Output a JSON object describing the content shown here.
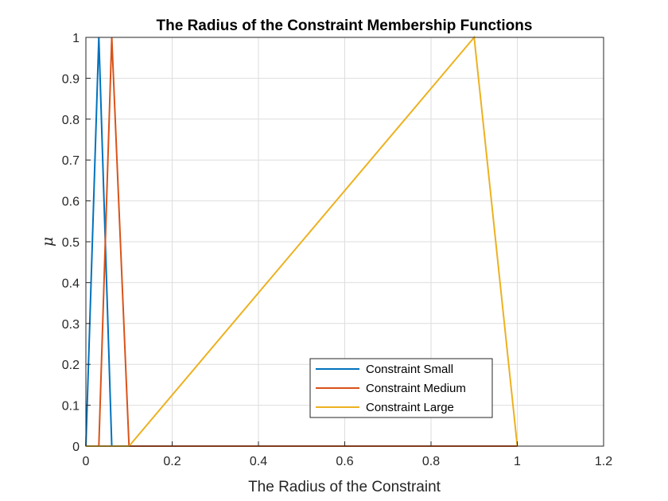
{
  "chart_data": {
    "type": "line",
    "title": "The Radius of the Constraint Membership Functions",
    "xlabel": "The Radius of the Constraint",
    "ylabel": "μ",
    "xlim": [
      0,
      1.2
    ],
    "ylim": [
      0,
      1
    ],
    "xticks": [
      "0",
      "0.2",
      "0.4",
      "0.6",
      "0.8",
      "1",
      "1.2"
    ],
    "yticks": [
      "0",
      "0.1",
      "0.2",
      "0.3",
      "0.4",
      "0.5",
      "0.6",
      "0.7",
      "0.8",
      "0.9",
      "1"
    ],
    "grid": true,
    "legend_position": "bottom-right",
    "series": [
      {
        "name": "Constraint Small",
        "color": "#0072BD",
        "x": [
          0,
          0.03,
          0.06,
          0.1,
          1.0
        ],
        "y": [
          0,
          1,
          0,
          0,
          0
        ]
      },
      {
        "name": "Constraint Medium",
        "color": "#D95319",
        "x": [
          0,
          0.03,
          0.06,
          0.1,
          1.0
        ],
        "y": [
          0,
          0,
          1,
          0,
          0
        ]
      },
      {
        "name": "Constraint Large",
        "color": "#EDB120",
        "x": [
          0,
          0.1,
          0.9,
          1.0
        ],
        "y": [
          0,
          0,
          1,
          0
        ]
      }
    ]
  }
}
